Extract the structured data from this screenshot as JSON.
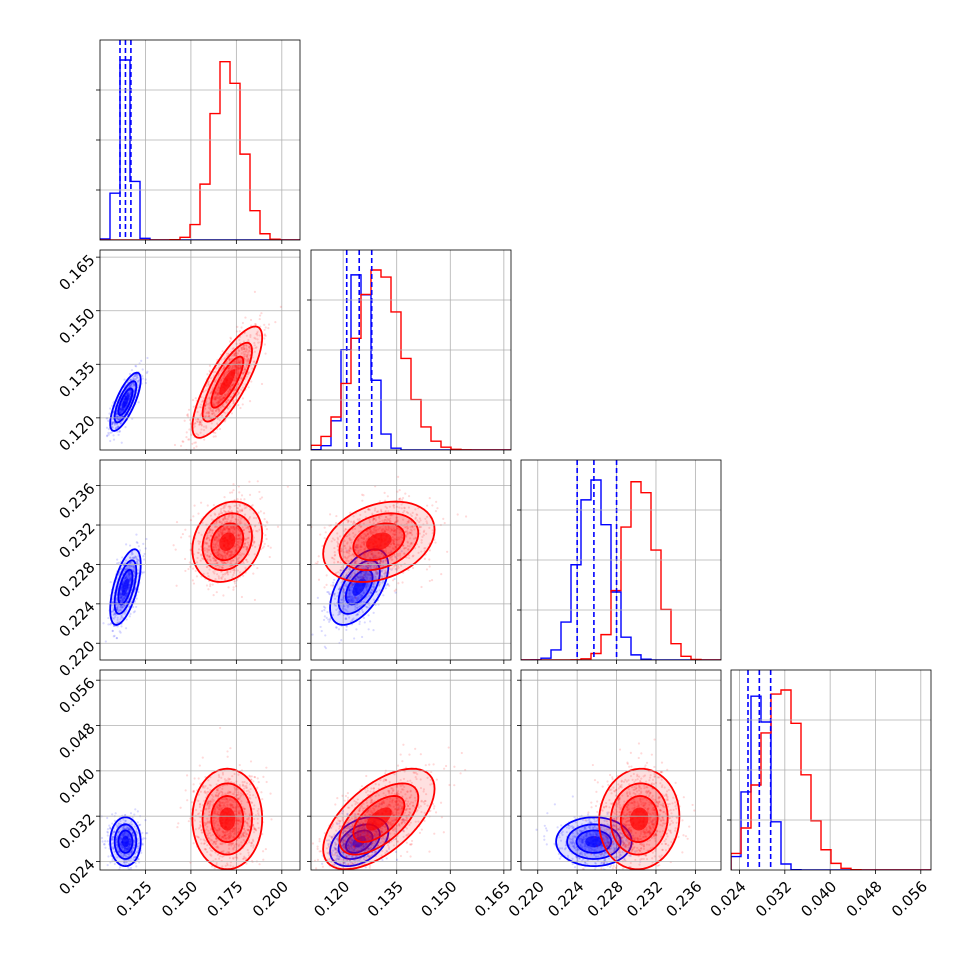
{
  "chart_data": {
    "type": "corner",
    "colors": {
      "posterior_a": "#0000ff",
      "posterior_b": "#ff0000"
    },
    "grid": true,
    "parameters": [
      {
        "range": [
          0.1,
          0.21
        ],
        "ticks": [
          0.125,
          0.15,
          0.175,
          0.2
        ],
        "tick_labels": [
          "0.125",
          "0.150",
          "0.175",
          "0.200"
        ]
      },
      {
        "range": [
          0.111,
          0.167
        ],
        "ticks": [
          0.12,
          0.135,
          0.15,
          0.165
        ],
        "tick_labels": [
          "0.120",
          "0.135",
          "0.150",
          "0.165"
        ]
      },
      {
        "range": [
          0.2183,
          0.2386
        ],
        "ticks": [
          0.22,
          0.224,
          0.228,
          0.232,
          0.236
        ],
        "tick_labels": [
          "0.220",
          "0.224",
          "0.228",
          "0.232",
          "0.236"
        ]
      },
      {
        "range": [
          0.0225,
          0.0578
        ],
        "ticks": [
          0.024,
          0.032,
          0.04,
          0.048,
          0.056
        ],
        "tick_labels": [
          "0.024",
          "0.032",
          "0.040",
          "0.048",
          "0.056"
        ]
      }
    ],
    "series": [
      {
        "color": "#0000ff",
        "mean": [
          0.114,
          0.1245,
          0.2257,
          0.0275
        ],
        "std": [
          0.0035,
          0.0034,
          0.0016,
          0.0018
        ],
        "corr": {
          "0-1": 0.75,
          "0-2": 0.6,
          "1-2": 0.55,
          "0-3": 0.0,
          "1-3": 0.4,
          "2-3": 0.0
        },
        "quantiles": [
          [
            0.111,
            0.114,
            0.117
          ],
          [
            0.121,
            0.1245,
            0.128
          ],
          [
            0.224,
            0.2257,
            0.228
          ],
          [
            0.0255,
            0.0275,
            0.0295
          ]
        ]
      },
      {
        "color": "#ff0000",
        "mean": [
          0.17,
          0.13,
          0.2303,
          0.0315
        ],
        "std": [
          0.008,
          0.0065,
          0.0017,
          0.0037
        ],
        "corr": {
          "0-1": 0.8,
          "0-2": 0.2,
          "1-2": 0.3,
          "0-3": 0.0,
          "1-3": 0.6,
          "2-3": 0.05
        }
      }
    ]
  }
}
